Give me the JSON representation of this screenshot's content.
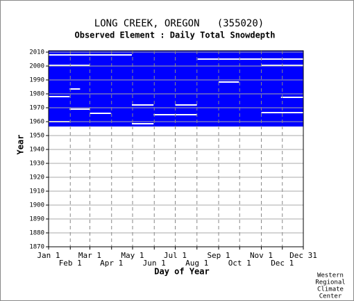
{
  "chart_data": {
    "type": "availability",
    "title": "LONG CREEK, OREGON   (355020)",
    "subtitle": "Observed Element : Daily Total Snowdepth",
    "x_label": "Day of Year",
    "y_label": "Year",
    "credit": [
      "Western",
      "Regional",
      "Climate",
      "Center"
    ],
    "color": "#0000ff",
    "xlim": [
      1,
      365
    ],
    "ylim": [
      1870,
      2011
    ],
    "xticks": [
      {
        "value": 1,
        "label": "Jan 1"
      },
      {
        "value": 32,
        "label": "Feb 1"
      },
      {
        "value": 60,
        "label": "Mar 1"
      },
      {
        "value": 91,
        "label": "Apr 1"
      },
      {
        "value": 121,
        "label": "May 1"
      },
      {
        "value": 152,
        "label": "Jun 1"
      },
      {
        "value": 182,
        "label": "Jul 1"
      },
      {
        "value": 213,
        "label": "Aug 1"
      },
      {
        "value": 244,
        "label": "Sep 1"
      },
      {
        "value": 274,
        "label": "Oct 1"
      },
      {
        "value": 305,
        "label": "Nov 1"
      },
      {
        "value": 335,
        "label": "Dec 1"
      },
      {
        "value": 365,
        "label": "Dec 31"
      }
    ],
    "yticks": [
      1870,
      1880,
      1890,
      1900,
      1910,
      1920,
      1930,
      1940,
      1950,
      1960,
      1970,
      1980,
      1990,
      2000,
      2010
    ],
    "grid": true,
    "periods": [
      {
        "years": [
          1956.5,
          2011
        ],
        "days": [
          1,
          365
        ]
      }
    ],
    "gaps": [
      [
        2008,
        1,
        120
      ],
      [
        2000.5,
        1,
        60
      ],
      [
        2000.5,
        305,
        365
      ],
      [
        2005,
        214,
        365
      ],
      [
        1978,
        1,
        31
      ],
      [
        1969,
        31,
        60
      ],
      [
        1966,
        60,
        90
      ],
      [
        1965,
        151,
        213
      ],
      [
        1972,
        120,
        151
      ],
      [
        1972,
        182,
        213
      ],
      [
        1988.5,
        244,
        273
      ],
      [
        1960,
        1,
        31
      ],
      [
        1977.5,
        333,
        365
      ],
      [
        1966.5,
        305,
        365
      ],
      [
        1958.5,
        120,
        151
      ],
      [
        1983.5,
        31,
        46
      ]
    ]
  }
}
